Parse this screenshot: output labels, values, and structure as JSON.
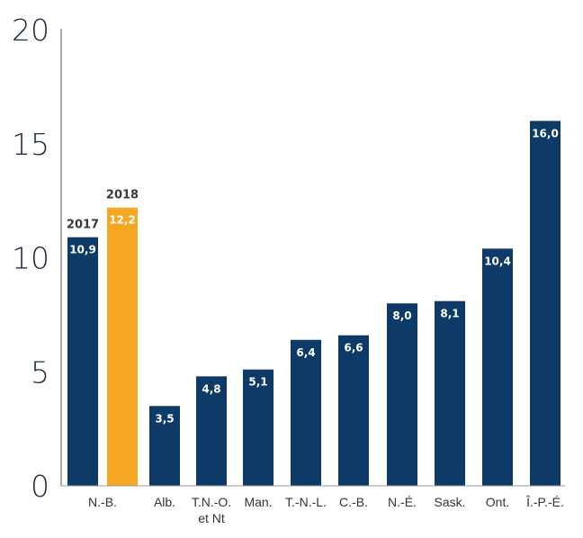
{
  "chart_data": {
    "type": "bar",
    "title": "",
    "xlabel": "",
    "ylabel": "",
    "ylim": [
      0,
      20
    ],
    "yticks": [
      "0",
      "5",
      "10",
      "15",
      "20"
    ],
    "grid": false,
    "colors": {
      "bar": "#0d3a66",
      "highlight": "#f5a623"
    },
    "categories": [
      {
        "label_lines": [
          "N.-B."
        ],
        "bars": [
          {
            "value": 10.9,
            "label": "10,9",
            "year": "2017",
            "highlight": false
          },
          {
            "value": 12.2,
            "label": "12,2",
            "year": "2018",
            "highlight": true
          }
        ]
      },
      {
        "label_lines": [
          "Alb."
        ],
        "bars": [
          {
            "value": 3.5,
            "label": "3,5"
          }
        ]
      },
      {
        "label_lines": [
          "T.N.-O.",
          "et Nt"
        ],
        "bars": [
          {
            "value": 4.8,
            "label": "4,8"
          }
        ]
      },
      {
        "label_lines": [
          "Man."
        ],
        "bars": [
          {
            "value": 5.1,
            "label": "5,1"
          }
        ]
      },
      {
        "label_lines": [
          "T.-N.-L."
        ],
        "bars": [
          {
            "value": 6.4,
            "label": "6,4"
          }
        ]
      },
      {
        "label_lines": [
          "C.-B."
        ],
        "bars": [
          {
            "value": 6.6,
            "label": "6,6"
          }
        ]
      },
      {
        "label_lines": [
          "N.-É."
        ],
        "bars": [
          {
            "value": 8.0,
            "label": "8,0"
          }
        ]
      },
      {
        "label_lines": [
          "Sask."
        ],
        "bars": [
          {
            "value": 8.1,
            "label": "8,1"
          }
        ]
      },
      {
        "label_lines": [
          "Ont."
        ],
        "bars": [
          {
            "value": 10.4,
            "label": "10,4"
          }
        ]
      },
      {
        "label_lines": [
          "Î.-P.-É."
        ],
        "bars": [
          {
            "value": 16.0,
            "label": "16,0"
          }
        ]
      }
    ]
  }
}
